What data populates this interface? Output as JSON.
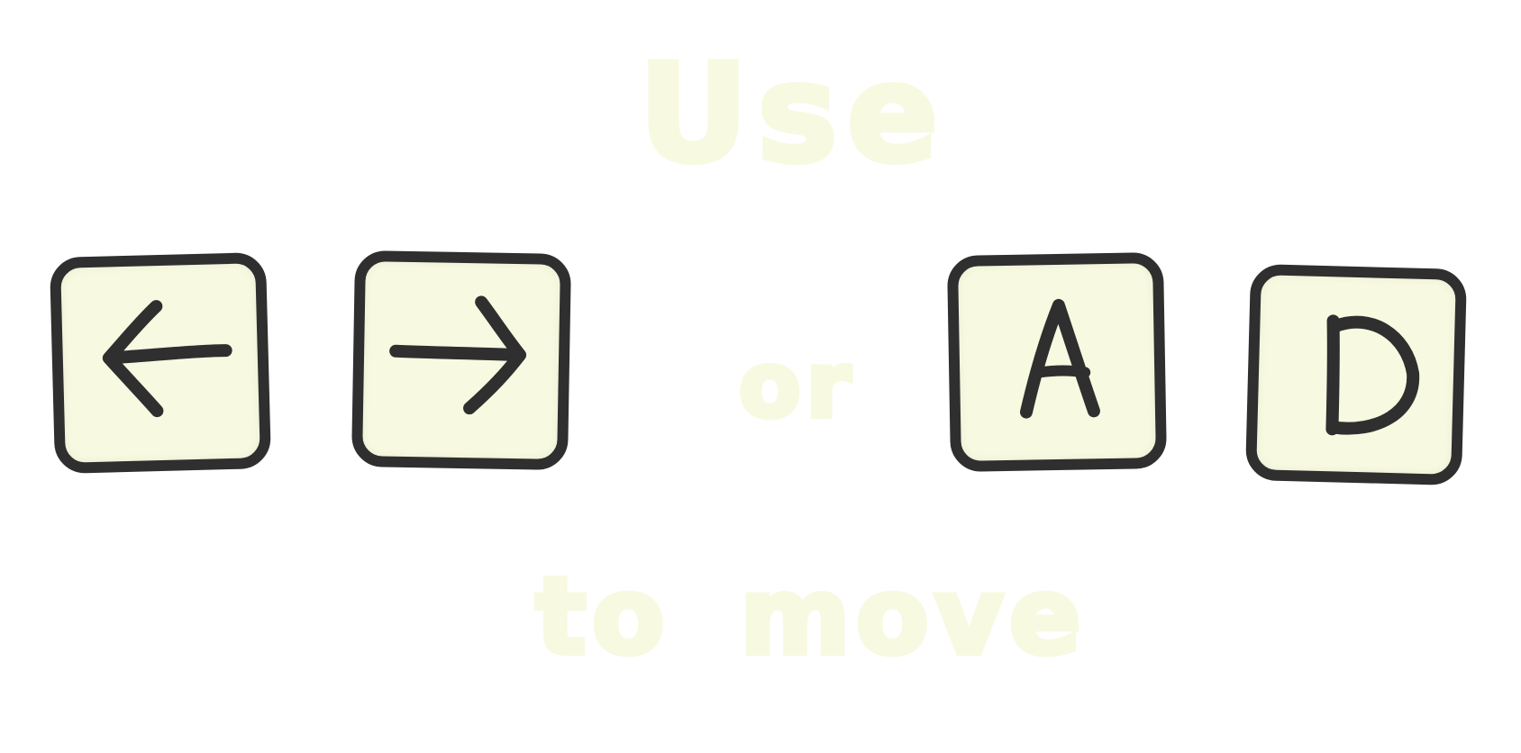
{
  "instruction": {
    "top_text": "Use",
    "middle_text": "or",
    "bottom_text": "to move"
  },
  "keys": [
    {
      "id": "left-arrow",
      "label": "←",
      "icon": "arrow-left-icon"
    },
    {
      "id": "right-arrow",
      "label": "→",
      "icon": "arrow-right-icon"
    },
    {
      "id": "a",
      "label": "A"
    },
    {
      "id": "d",
      "label": "D"
    }
  ],
  "colors": {
    "key_fill": "#f8f9e1",
    "key_outline": "#2f2f2f",
    "text": "#f8f9e1"
  }
}
